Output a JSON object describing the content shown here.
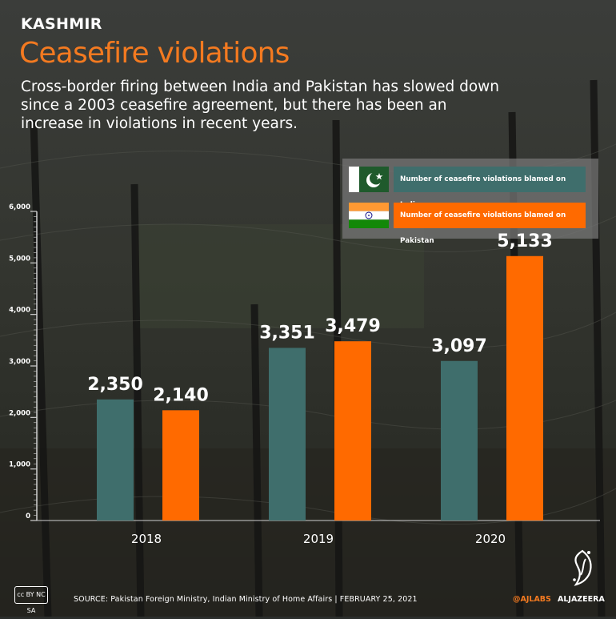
{
  "header": {
    "kicker": "KASHMIR",
    "title": "Ceasefire violations",
    "subtitle": "Cross-border firing between India and Pakistan has slowed down since a 2003 ceasefire agreement, but there has been an increase in violations in recent years."
  },
  "legend": {
    "items": [
      {
        "label": "Number of ceasefire violations blamed on India",
        "color": "#3f6e6c",
        "flag": "pakistan-flag"
      },
      {
        "label": "Number of ceasefire violations blamed on Pakistan",
        "color": "#ff6a00",
        "flag": "india-flag"
      }
    ]
  },
  "chart_data": {
    "type": "bar",
    "categories": [
      "2018",
      "2019",
      "2020"
    ],
    "series": [
      {
        "name": "Number of ceasefire violations blamed on India",
        "values": [
          2350,
          3351,
          3097
        ],
        "color": "#3f6e6c"
      },
      {
        "name": "Number of ceasefire violations blamed on Pakistan",
        "values": [
          2140,
          3479,
          5133
        ],
        "color": "#ff6a00"
      }
    ],
    "data_labels": [
      [
        "2,350",
        "3,351",
        "3,097"
      ],
      [
        "2,140",
        "3,479",
        "5,133"
      ]
    ],
    "yticks": [
      "0",
      "1,000",
      "2,000",
      "3,000",
      "4,000",
      "5,000",
      "6,000"
    ],
    "ytick_values": [
      0,
      1000,
      2000,
      3000,
      4000,
      5000,
      6000
    ],
    "ylim": [
      0,
      6000
    ],
    "grid": false,
    "legend_position": "top-right"
  },
  "footer": {
    "cc": "cc BY NC SA",
    "source": "SOURCE:  Pakistan Foreign Ministry, Indian Ministry of Home Affairs   |   FEBRUARY 25, 2021",
    "handle": "@AJLABS",
    "brand": "ALJAZEERA"
  }
}
